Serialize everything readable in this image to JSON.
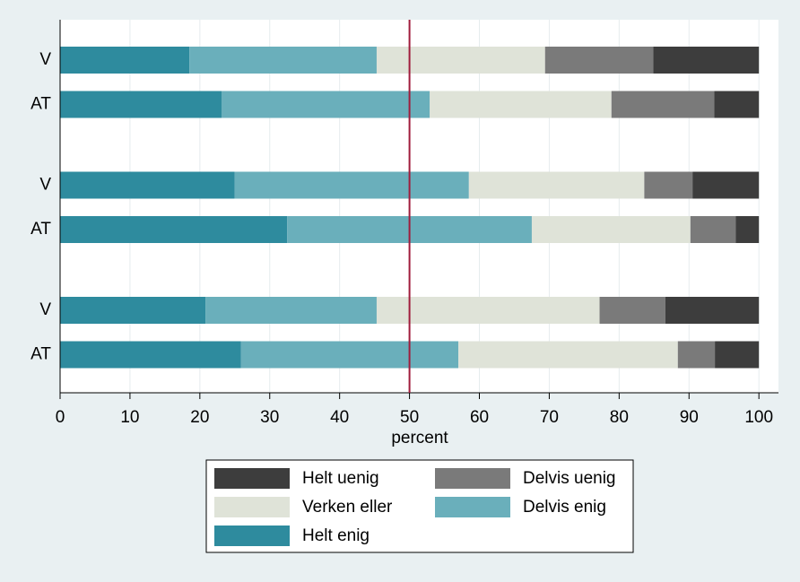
{
  "chart_data": {
    "type": "stacked-barh",
    "x_label": "percent",
    "categories": [
      "V",
      "AT",
      "V",
      "AT",
      "V",
      "AT"
    ],
    "series": [
      {
        "name": "Helt enig",
        "color": "#2e8b9e",
        "values": [
          18.5,
          23.1,
          25.0,
          32.5,
          20.8,
          25.9
        ]
      },
      {
        "name": "Delvis enig",
        "color": "#6aafbb",
        "values": [
          26.8,
          29.8,
          33.5,
          35.0,
          24.5,
          31.1
        ]
      },
      {
        "name": "Verken eller",
        "color": "#dfe3d8",
        "values": [
          24.1,
          26.0,
          25.1,
          22.7,
          31.9,
          31.4
        ]
      },
      {
        "name": "Delvis uenig",
        "color": "#7a7a7a",
        "values": [
          15.5,
          14.7,
          6.9,
          6.5,
          9.4,
          5.3
        ]
      },
      {
        "name": "Helt uenig",
        "color": "#3d3d3d",
        "values": [
          15.1,
          6.4,
          9.5,
          3.3,
          13.4,
          6.3
        ]
      }
    ],
    "xlim": [
      0,
      102.8
    ],
    "xticks": [
      0,
      10,
      20,
      30,
      40,
      50,
      60,
      70,
      80,
      90,
      100
    ],
    "grid": true,
    "reference_line": {
      "value": 50,
      "color": "#a01c3c"
    }
  }
}
